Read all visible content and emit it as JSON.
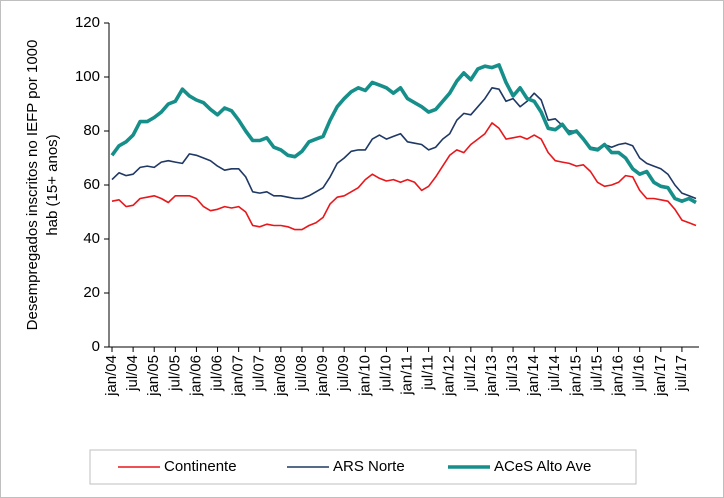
{
  "chart_data": {
    "type": "line",
    "y_label": [
      "Desempregados inscritos no IEFP por 1000",
      "hab (15+ anos)"
    ],
    "categories": [
      "jan/04",
      null,
      null,
      "jul/04",
      null,
      null,
      "jan/05",
      null,
      null,
      "jul/05",
      null,
      null,
      "jan/06",
      null,
      null,
      "jul/06",
      null,
      null,
      "jan/07",
      null,
      null,
      "jul/07",
      null,
      null,
      "jan/08",
      null,
      null,
      "jul/08",
      null,
      null,
      "jan/09",
      null,
      null,
      "jul/09",
      null,
      null,
      "jan/10",
      null,
      null,
      "jul/10",
      null,
      null,
      "jan/11",
      null,
      null,
      "jul/11",
      null,
      null,
      "jan/12",
      null,
      null,
      "jul/12",
      null,
      null,
      "jan/13",
      null,
      null,
      "jul/13",
      null,
      null,
      "jan/14",
      null,
      null,
      "jul/14",
      null,
      null,
      "jan/15",
      null,
      null,
      "jul/15",
      null,
      null,
      "jan/16",
      null,
      null,
      "jul/16",
      null,
      null,
      "jan/17",
      null,
      null,
      "jul/17",
      null,
      null
    ],
    "series": [
      {
        "name": "Continente",
        "color": "#e8171b",
        "width": 1.6,
        "values": [
          54,
          54.5,
          52,
          52.5,
          55,
          55.5,
          56,
          55,
          53.5,
          56,
          56,
          56,
          55,
          52,
          50.5,
          51,
          52,
          51.5,
          52,
          50,
          45,
          44.5,
          45.5,
          45,
          45,
          44.5,
          43.5,
          43.5,
          45,
          46,
          48,
          53,
          55.5,
          56,
          57.5,
          59,
          62,
          64,
          62.5,
          61.5,
          62,
          61,
          62,
          61,
          58,
          59.5,
          63,
          67,
          71,
          73,
          72,
          75,
          77,
          79,
          83,
          81,
          77,
          77.5,
          78,
          77,
          78.5,
          77,
          72,
          69,
          68.5,
          68,
          67,
          67.5,
          65,
          61,
          59.5,
          60,
          61,
          63.5,
          63,
          58,
          55,
          55,
          54.5,
          54,
          51,
          47,
          46,
          45
        ]
      },
      {
        "name": "ARS Norte",
        "color": "#1f3864",
        "width": 1.6,
        "values": [
          62,
          64.5,
          63.5,
          64,
          66.5,
          67,
          66.5,
          68.5,
          69,
          68.5,
          68,
          71.5,
          71,
          70,
          69,
          67,
          65.5,
          66,
          66,
          63,
          57.5,
          57,
          57.5,
          56,
          56,
          55.5,
          55,
          55,
          56,
          57.5,
          59,
          63,
          68,
          70,
          72.5,
          73,
          73,
          77,
          78.5,
          77,
          78,
          79,
          76,
          75.5,
          75,
          73,
          74,
          77,
          79,
          84,
          86.5,
          86,
          89,
          92,
          96,
          95.5,
          91,
          92,
          89,
          91,
          94,
          91.5,
          84,
          84.5,
          82,
          80,
          80,
          77,
          74,
          73.5,
          75,
          74,
          75,
          75.5,
          74.5,
          70,
          68,
          67,
          66,
          64,
          60,
          57,
          56,
          55
        ]
      },
      {
        "name": "ACeS Alto Ave",
        "color": "#168f8a",
        "width": 3.6,
        "values": [
          71,
          74.5,
          76,
          78.5,
          83.5,
          83.5,
          85,
          87,
          90,
          91,
          95.5,
          93,
          91.5,
          90.5,
          88,
          86,
          88.5,
          87.5,
          84,
          80,
          76.5,
          76.5,
          77.5,
          74,
          73,
          71,
          70.5,
          72.5,
          76,
          77,
          78,
          84,
          89,
          92,
          94.5,
          96,
          95,
          98,
          97,
          96,
          94,
          96,
          92,
          90.5,
          89,
          87,
          88,
          91,
          94,
          98.5,
          101.5,
          99,
          103,
          104,
          103.5,
          104.5,
          98,
          93,
          96,
          92,
          91,
          87,
          81,
          80.5,
          82.5,
          79,
          80,
          77,
          73.5,
          73,
          75,
          72,
          72,
          70,
          66,
          64,
          65,
          61,
          59.5,
          59,
          55,
          54,
          55,
          53.5
        ]
      }
    ],
    "ylim": [
      0,
      120
    ],
    "yticks": [
      0,
      20,
      40,
      60,
      80,
      100,
      120
    ],
    "grid": false,
    "legend": "bottom"
  }
}
